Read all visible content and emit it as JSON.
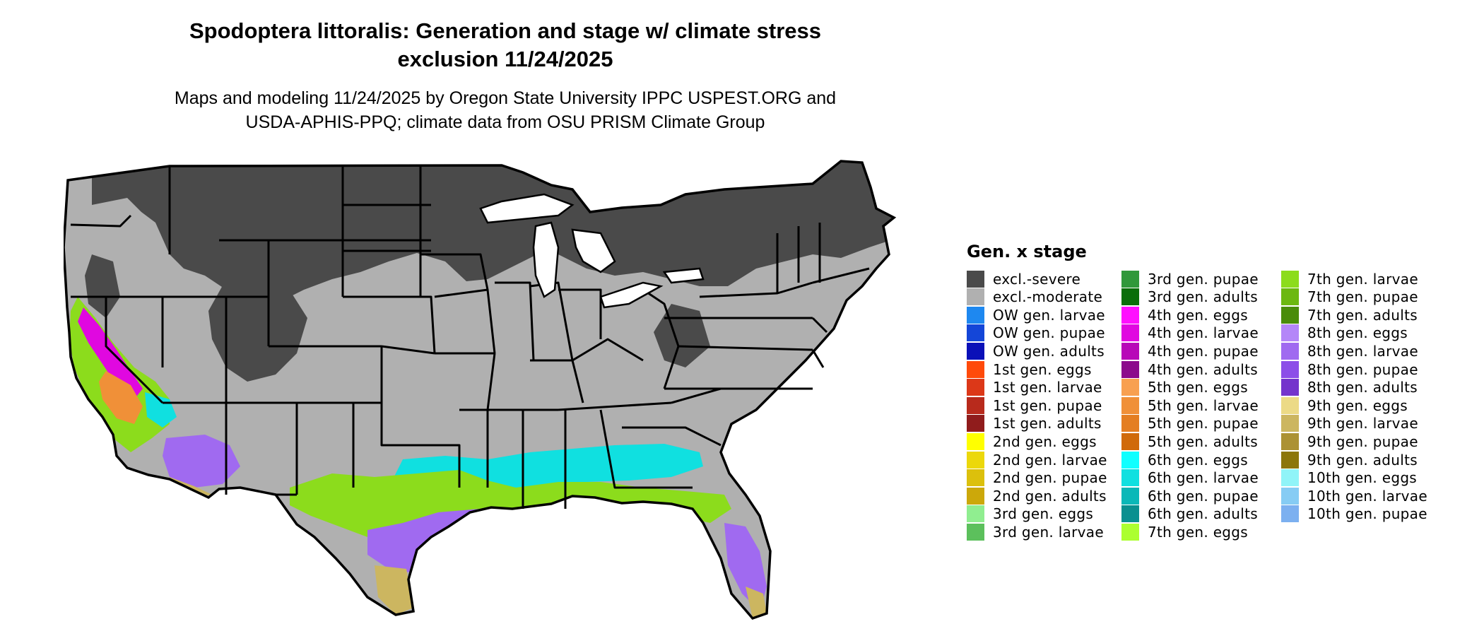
{
  "title": {
    "line1": "Spodoptera littoralis: Generation and stage w/ climate stress",
    "line2": "exclusion 11/24/2025"
  },
  "subtitle": {
    "line1": "Maps and modeling 11/24/2025 by Oregon State University IPPC USPEST.ORG and",
    "line2": "USDA-APHIS-PPQ; climate data from OSU PRISM Climate Group"
  },
  "legend": {
    "title": "Gen. x stage",
    "columns": [
      [
        {
          "label": "excl.-severe",
          "color": "#4a4a4a"
        },
        {
          "label": "excl.-moderate",
          "color": "#b0b0b0"
        },
        {
          "label": "OW gen. larvae",
          "color": "#1e88f0"
        },
        {
          "label": "OW gen. pupae",
          "color": "#1446d8"
        },
        {
          "label": "OW gen. adults",
          "color": "#0a10b8"
        },
        {
          "label": "1st gen. eggs",
          "color": "#ff4a0a"
        },
        {
          "label": "1st gen. larvae",
          "color": "#dc3818"
        },
        {
          "label": "1st gen. pupae",
          "color": "#b82a1c"
        },
        {
          "label": "1st gen. adults",
          "color": "#901c1c"
        },
        {
          "label": "2nd gen. eggs",
          "color": "#ffff00"
        },
        {
          "label": "2nd gen. larvae",
          "color": "#ecd80a"
        },
        {
          "label": "2nd gen. pupae",
          "color": "#dcc00c"
        },
        {
          "label": "2nd gen. adults",
          "color": "#cca80a"
        },
        {
          "label": "3rd gen. eggs",
          "color": "#90ee90"
        },
        {
          "label": "3rd gen. larvae",
          "color": "#5cc05c"
        }
      ],
      [
        {
          "label": "3rd gen. pupae",
          "color": "#30983a"
        },
        {
          "label": "3rd gen. adults",
          "color": "#0a6e0a"
        },
        {
          "label": "4th gen. eggs",
          "color": "#ff10ff"
        },
        {
          "label": "4th gen. larvae",
          "color": "#e008e0"
        },
        {
          "label": "4th gen. pupae",
          "color": "#b808b8"
        },
        {
          "label": "4th gen. adults",
          "color": "#8c0a8c"
        },
        {
          "label": "5th gen. eggs",
          "color": "#f8a050"
        },
        {
          "label": "5th gen. larvae",
          "color": "#f09038"
        },
        {
          "label": "5th gen. pupae",
          "color": "#e47e22"
        },
        {
          "label": "5th gen. adults",
          "color": "#d06a0a"
        },
        {
          "label": "6th gen. eggs",
          "color": "#10ffff"
        },
        {
          "label": "6th gen. larvae",
          "color": "#10e0e0"
        },
        {
          "label": "6th gen. pupae",
          "color": "#0ab8b8"
        },
        {
          "label": "6th gen. adults",
          "color": "#0a9090"
        },
        {
          "label": "7th gen. eggs",
          "color": "#acff30"
        }
      ],
      [
        {
          "label": "7th gen. larvae",
          "color": "#8cdc1c"
        },
        {
          "label": "7th gen. pupae",
          "color": "#6cb810"
        },
        {
          "label": "7th gen. adults",
          "color": "#4a8c0a"
        },
        {
          "label": "8th gen. eggs",
          "color": "#b486f8"
        },
        {
          "label": "8th gen. larvae",
          "color": "#a06af0"
        },
        {
          "label": "8th gen. pupae",
          "color": "#8c4ee8"
        },
        {
          "label": "8th gen. adults",
          "color": "#7434cc"
        },
        {
          "label": "9th gen. eggs",
          "color": "#ecda86"
        },
        {
          "label": "9th gen. larvae",
          "color": "#ccb660"
        },
        {
          "label": "9th gen. pupae",
          "color": "#ac9234"
        },
        {
          "label": "9th gen. adults",
          "color": "#8c760a"
        },
        {
          "label": "10th gen. eggs",
          "color": "#90f4f8"
        },
        {
          "label": "10th gen. larvae",
          "color": "#86ccf4"
        },
        {
          "label": "10th gen. pupae",
          "color": "#7cb0f0"
        }
      ]
    ]
  }
}
